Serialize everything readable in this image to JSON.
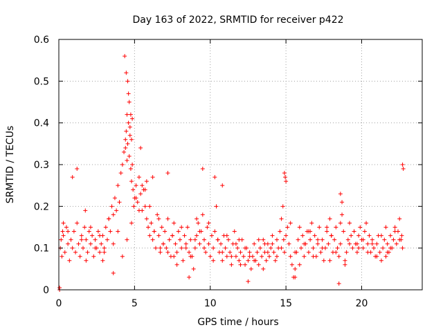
{
  "chart_data": {
    "type": "scatter",
    "title": "Day 163 of 2022, SRMTID for receiver p422",
    "xlabel": "GPS time / hours",
    "ylabel": "SRMTID / TECUs",
    "xlim": [
      0,
      24
    ],
    "ylim": [
      0,
      0.6
    ],
    "xticks": [
      0,
      5,
      10,
      15,
      20
    ],
    "yticks": [
      0,
      0.1,
      0.2,
      0.3,
      0.4,
      0.5,
      0.6
    ],
    "xtick_labels": [
      "0",
      "5",
      "10",
      "15",
      "20"
    ],
    "ytick_labels": [
      "0",
      "0.1",
      "0.2",
      "0.3",
      "0.4",
      "0.5",
      "0.6"
    ],
    "grid": true,
    "marker": "+",
    "color": "#ff0000",
    "series": [
      {
        "name": "SRMTID",
        "x": [
          0.05,
          0.05,
          0.1,
          0.2,
          0.3,
          0.4,
          0.5,
          0.6,
          0.7,
          0.8,
          0.9,
          1.0,
          1.1,
          1.2,
          1.3,
          1.4,
          1.5,
          1.6,
          1.7,
          1.8,
          1.9,
          2.0,
          2.1,
          2.2,
          2.3,
          2.4,
          2.5,
          2.6,
          2.7,
          2.8,
          2.9,
          3.0,
          3.1,
          3.2,
          3.3,
          3.4,
          3.5,
          3.6,
          3.7,
          3.8,
          3.9,
          4.0,
          4.1,
          4.2,
          4.3,
          4.4,
          4.45,
          4.5,
          4.55,
          4.6,
          4.65,
          4.7,
          4.75,
          4.8,
          4.85,
          4.9,
          4.95,
          5.0,
          5.1,
          5.2,
          5.3,
          5.4,
          5.5,
          5.6,
          5.7,
          5.8,
          5.9,
          6.0,
          6.1,
          6.2,
          6.3,
          6.4,
          6.5,
          6.6,
          6.7,
          6.8,
          6.9,
          7.0,
          7.1,
          7.2,
          7.3,
          7.4,
          7.5,
          7.6,
          7.7,
          7.8,
          7.9,
          8.0,
          8.1,
          8.2,
          8.3,
          8.4,
          8.5,
          8.6,
          8.7,
          8.8,
          8.9,
          9.0,
          9.1,
          9.2,
          9.3,
          9.4,
          9.5,
          9.6,
          9.7,
          9.8,
          9.9,
          10.0,
          10.1,
          10.2,
          10.3,
          10.4,
          10.5,
          10.6,
          10.7,
          10.8,
          10.9,
          11.0,
          11.1,
          11.2,
          11.3,
          11.4,
          11.5,
          11.6,
          11.7,
          11.8,
          11.9,
          12.0,
          12.1,
          12.2,
          12.3,
          12.4,
          12.5,
          12.6,
          12.7,
          12.8,
          12.9,
          13.0,
          13.1,
          13.2,
          13.3,
          13.4,
          13.5,
          13.6,
          13.7,
          13.8,
          13.9,
          14.0,
          14.1,
          14.2,
          14.3,
          14.4,
          14.5,
          14.6,
          14.7,
          14.8,
          14.85,
          14.9,
          15.0,
          15.1,
          15.2,
          15.3,
          15.4,
          15.5,
          15.6,
          15.7,
          15.8,
          15.9,
          16.0,
          16.1,
          16.2,
          16.3,
          16.4,
          16.5,
          16.6,
          16.7,
          16.8,
          16.9,
          17.0,
          17.1,
          17.2,
          17.3,
          17.4,
          17.5,
          17.6,
          17.7,
          17.8,
          17.9,
          18.0,
          18.1,
          18.2,
          18.3,
          18.4,
          18.5,
          18.6,
          18.7,
          18.8,
          18.9,
          19.0,
          19.1,
          19.2,
          19.3,
          19.4,
          19.5,
          19.6,
          19.7,
          19.8,
          19.9,
          20.0,
          20.1,
          20.2,
          20.3,
          20.4,
          20.5,
          20.6,
          20.7,
          20.8,
          20.9,
          21.0,
          21.1,
          21.2,
          21.3,
          21.4,
          21.5,
          21.6,
          21.7,
          21.8,
          21.9,
          22.0,
          22.1,
          22.2,
          22.3,
          22.4,
          22.5,
          22.6,
          22.65,
          22.7,
          0.3,
          0.6,
          0.9,
          1.2,
          1.5,
          1.8,
          2.1,
          2.4,
          2.7,
          3.0,
          3.3,
          3.6,
          3.9,
          4.2,
          4.5,
          4.8,
          5.1,
          5.4,
          5.7,
          6.0,
          6.3,
          6.6,
          6.9,
          7.2,
          7.5,
          7.8,
          8.1,
          8.4,
          8.7,
          9.0,
          9.3,
          9.6,
          9.9,
          10.2,
          10.5,
          10.8,
          11.1,
          11.4,
          11.7,
          12.0,
          12.3,
          12.6,
          12.9,
          13.2,
          13.5,
          13.8,
          14.1,
          14.4,
          14.7,
          15.0,
          15.3,
          15.6,
          15.9,
          16.2,
          16.5,
          16.8,
          17.1,
          17.4,
          17.7,
          18.0,
          18.3,
          18.6,
          18.9,
          19.2,
          19.5,
          19.8,
          20.1,
          20.4,
          20.7,
          21.0,
          21.3,
          21.6,
          21.9,
          22.2,
          22.5,
          4.35,
          4.45,
          4.55,
          4.65,
          4.75,
          4.85,
          4.6,
          4.7,
          4.8,
          4.5,
          4.4,
          5.5,
          5.8,
          6.2,
          7.2,
          9.5,
          10.3,
          10.8,
          14.9,
          14.95,
          18.6,
          18.7,
          22.7,
          22.75,
          15.6,
          18.5,
          12.5,
          8.6,
          3.6,
          0.15,
          0.25,
          1.75,
          2.9,
          5.3,
          6.7,
          7.6,
          9.1,
          11.9,
          13.6,
          16.6,
          17.9,
          19.7,
          21.7
        ],
        "y": [
          0.0,
          0.005,
          0.1,
          0.08,
          0.13,
          0.09,
          0.15,
          0.11,
          0.07,
          0.12,
          0.1,
          0.14,
          0.09,
          0.16,
          0.11,
          0.08,
          0.13,
          0.1,
          0.15,
          0.12,
          0.09,
          0.14,
          0.11,
          0.13,
          0.08,
          0.12,
          0.1,
          0.14,
          0.09,
          0.11,
          0.13,
          0.1,
          0.15,
          0.12,
          0.17,
          0.14,
          0.2,
          0.18,
          0.22,
          0.19,
          0.25,
          0.21,
          0.28,
          0.3,
          0.33,
          0.36,
          0.38,
          0.42,
          0.35,
          0.4,
          0.32,
          0.37,
          0.29,
          0.26,
          0.3,
          0.24,
          0.2,
          0.22,
          0.25,
          0.21,
          0.27,
          0.23,
          0.19,
          0.24,
          0.2,
          0.17,
          0.15,
          0.13,
          0.16,
          0.12,
          0.14,
          0.1,
          0.18,
          0.13,
          0.09,
          0.15,
          0.11,
          0.14,
          0.1,
          0.17,
          0.12,
          0.08,
          0.13,
          0.16,
          0.11,
          0.09,
          0.14,
          0.12,
          0.1,
          0.07,
          0.13,
          0.11,
          0.15,
          0.09,
          0.12,
          0.08,
          0.05,
          0.1,
          0.13,
          0.16,
          0.11,
          0.14,
          0.18,
          0.12,
          0.09,
          0.15,
          0.11,
          0.08,
          0.13,
          0.1,
          0.14,
          0.2,
          0.12,
          0.09,
          0.11,
          0.07,
          0.13,
          0.1,
          0.08,
          0.12,
          0.09,
          0.06,
          0.11,
          0.14,
          0.08,
          0.1,
          0.07,
          0.09,
          0.12,
          0.08,
          0.06,
          0.1,
          0.07,
          0.09,
          0.05,
          0.08,
          0.11,
          0.07,
          0.09,
          0.06,
          0.1,
          0.08,
          0.12,
          0.09,
          0.07,
          0.11,
          0.08,
          0.1,
          0.13,
          0.09,
          0.07,
          0.12,
          0.1,
          0.14,
          0.17,
          0.2,
          0.12,
          0.09,
          0.26,
          0.15,
          0.11,
          0.08,
          0.06,
          0.03,
          0.05,
          0.09,
          0.12,
          0.15,
          0.1,
          0.13,
          0.08,
          0.11,
          0.14,
          0.09,
          0.12,
          0.16,
          0.1,
          0.13,
          0.08,
          0.11,
          0.15,
          0.09,
          0.12,
          0.07,
          0.1,
          0.14,
          0.11,
          0.17,
          0.13,
          0.09,
          0.12,
          0.15,
          0.1,
          0.08,
          0.11,
          0.18,
          0.14,
          0.06,
          0.09,
          0.12,
          0.16,
          0.13,
          0.1,
          0.14,
          0.11,
          0.09,
          0.13,
          0.15,
          0.12,
          0.1,
          0.14,
          0.16,
          0.11,
          0.13,
          0.09,
          0.12,
          0.1,
          0.08,
          0.11,
          0.13,
          0.09,
          0.07,
          0.1,
          0.12,
          0.08,
          0.11,
          0.09,
          0.13,
          0.1,
          0.12,
          0.15,
          0.11,
          0.14,
          0.17,
          0.12,
          0.13,
          0.1,
          0.16,
          0.14,
          0.27,
          0.29,
          0.12,
          0.07,
          0.15,
          0.1,
          0.13,
          0.09,
          0.17,
          0.11,
          0.14,
          0.08,
          0.12,
          0.16,
          0.22,
          0.34,
          0.24,
          0.2,
          0.14,
          0.17,
          0.11,
          0.09,
          0.13,
          0.06,
          0.15,
          0.1,
          0.08,
          0.12,
          0.14,
          0.1,
          0.16,
          0.07,
          0.12,
          0.09,
          0.13,
          0.08,
          0.11,
          0.06,
          0.1,
          0.08,
          0.07,
          0.12,
          0.05,
          0.09,
          0.11,
          0.08,
          0.1,
          0.13,
          0.16,
          0.09,
          0.06,
          0.11,
          0.14,
          0.08,
          0.12,
          0.1,
          0.15,
          0.13,
          0.09,
          0.16,
          0.07,
          0.11,
          0.14,
          0.1,
          0.12,
          0.09,
          0.11,
          0.08,
          0.13,
          0.15,
          0.1,
          0.14,
          0.12,
          0.56,
          0.52,
          0.5,
          0.45,
          0.42,
          0.41,
          0.47,
          0.39,
          0.36,
          0.31,
          0.34,
          0.25,
          0.26,
          0.27,
          0.28,
          0.29,
          0.27,
          0.25,
          0.28,
          0.27,
          0.23,
          0.21,
          0.3,
          0.29,
          0.03,
          0.015,
          0.02,
          0.03,
          0.04,
          0.12,
          0.14,
          0.19,
          0.07,
          0.19,
          0.1,
          0.08,
          0.17,
          0.12,
          0.11,
          0.14,
          0.07,
          0.11,
          0.09
        ]
      }
    ]
  }
}
